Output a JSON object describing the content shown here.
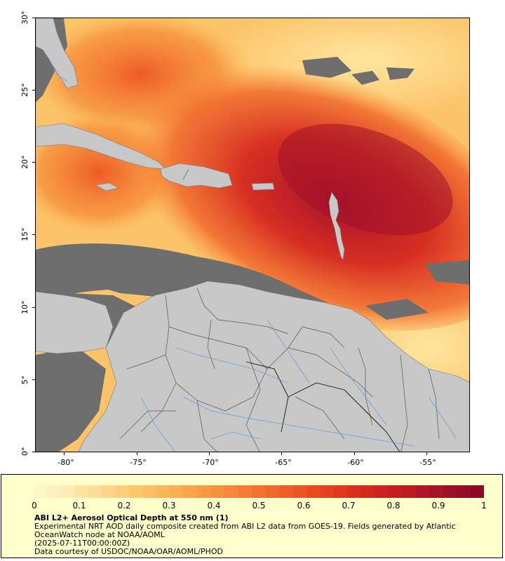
{
  "map": {
    "lat_labels": [
      "0°",
      "5°",
      "10°",
      "15°",
      "20°",
      "25°",
      "30°"
    ],
    "lon_labels": [
      "-80°",
      "-75°",
      "-70°",
      "-65°",
      "-60°",
      "-55°"
    ],
    "colors": {
      "land": "#c8c8c8",
      "no_data": "#6e6e6e",
      "rivers": "#6a9fd8",
      "borders": "#555555",
      "low": "#fff2c2",
      "high": "#8e0a26"
    }
  },
  "legend": {
    "colorbar_labels": [
      "0",
      "0.1",
      "0.2",
      "0.3",
      "0.4",
      "0.5",
      "0.6",
      "0.7",
      "0.8",
      "0.9",
      "1"
    ],
    "colorbar_min": 0,
    "colorbar_max": 1,
    "title": "ABI L2+ Aerosol Optical Depth at 550 nm (1)",
    "line1": "Experimental NRT AOD daily composite created from ABI L2 data from GOES-19. Fields generated by Atlantic OceanWatch node at NOAA/AOML",
    "line2": "(2025-07-11T00:00:00Z)",
    "line3": "Data courtesy of USDOC/NOAA/OAR/AOML/PHOD"
  }
}
